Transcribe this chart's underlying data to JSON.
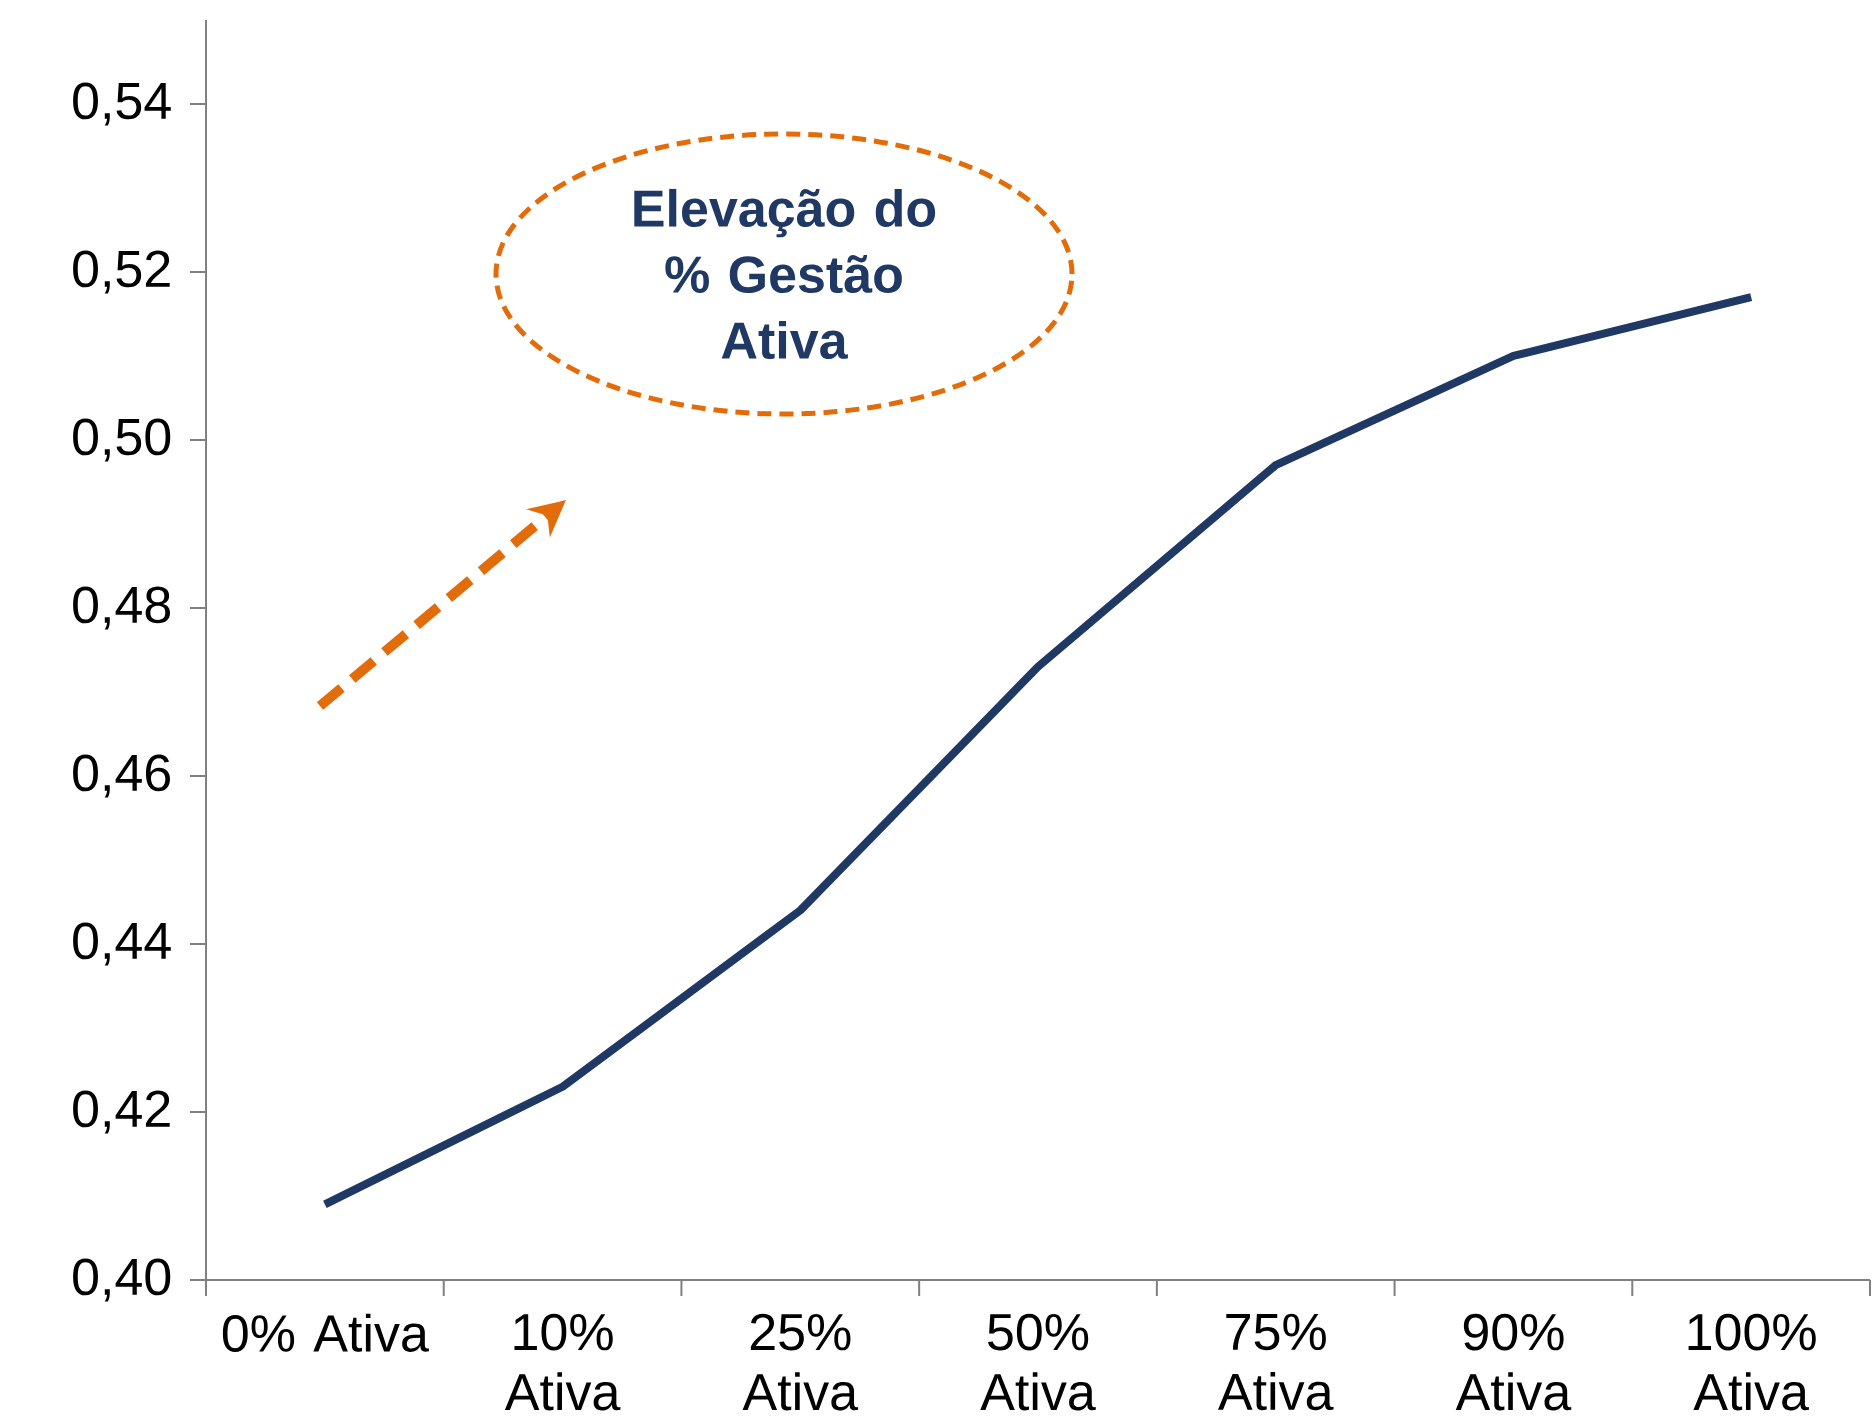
{
  "chart_data": {
    "type": "line",
    "categories": [
      "0% Ativa",
      "10% Ativa",
      "25% Ativa",
      "50% Ativa",
      "75% Ativa",
      "90% Ativa",
      "100% Ativa"
    ],
    "series": [
      {
        "color": "#1f3864",
        "values": [
          0.409,
          0.423,
          0.444,
          0.473,
          0.497,
          0.51,
          0.517
        ]
      }
    ],
    "ylim": [
      0.4,
      0.55
    ],
    "yticks": [
      {
        "value": 0.4,
        "label": "0,40"
      },
      {
        "value": 0.42,
        "label": "0,42"
      },
      {
        "value": 0.44,
        "label": "0,44"
      },
      {
        "value": 0.46,
        "label": "0,46"
      },
      {
        "value": 0.48,
        "label": "0,48"
      },
      {
        "value": 0.5,
        "label": "0,50"
      },
      {
        "value": 0.52,
        "label": "0,52"
      },
      {
        "value": 0.54,
        "label": "0,54"
      }
    ],
    "annotations": [
      "Elevação do % Gestão Ativa"
    ],
    "marker": "none",
    "line_style": "solid",
    "grid": false
  }
}
